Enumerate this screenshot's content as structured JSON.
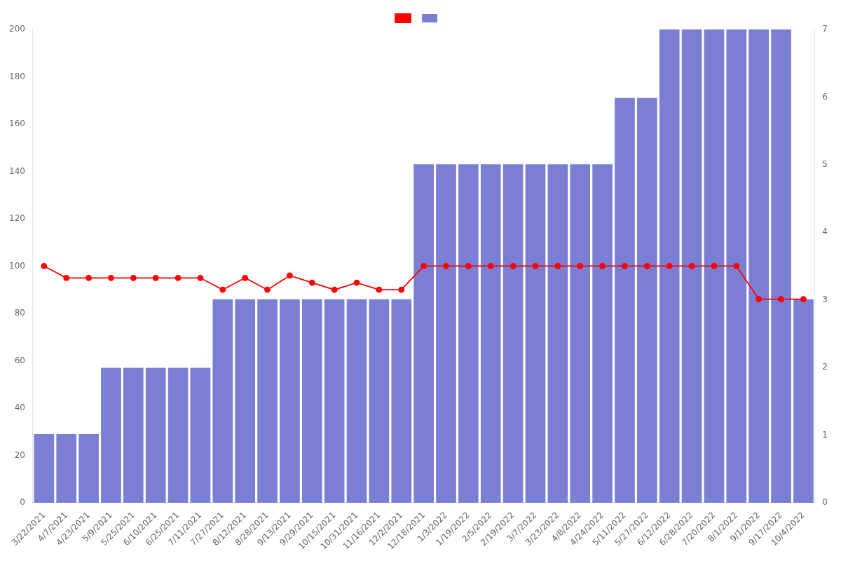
{
  "chart_data": {
    "type": "bar",
    "categories": [
      "3/22/2021",
      "4/7/2021",
      "4/23/2021",
      "5/9/2021",
      "5/25/2021",
      "6/10/2021",
      "6/25/2021",
      "7/11/2021",
      "7/27/2021",
      "8/12/2021",
      "8/28/2021",
      "9/13/2021",
      "9/29/2021",
      "10/15/2021",
      "10/31/2021",
      "11/16/2021",
      "12/2/2021",
      "12/18/2021",
      "1/3/2022",
      "1/19/2022",
      "2/5/2022",
      "2/19/2022",
      "3/7/2022",
      "3/23/2022",
      "4/8/2022",
      "4/24/2022",
      "5/11/2022",
      "5/27/2022",
      "6/12/2022",
      "6/28/2022",
      "7/20/2022",
      "8/1/2022",
      "9/1/2022",
      "9/17/2022",
      "10/4/2022"
    ],
    "series": [
      {
        "type": "bar",
        "color": "#7B7FD4",
        "values": [
          29,
          29,
          29,
          57,
          57,
          57,
          57,
          57,
          86,
          86,
          86,
          86,
          86,
          86,
          86,
          86,
          86,
          143,
          143,
          143,
          143,
          143,
          143,
          143,
          143,
          143,
          171,
          171,
          200,
          200,
          200,
          200,
          200,
          200,
          86
        ]
      },
      {
        "type": "line",
        "color": "#FF0000",
        "marker": "circle",
        "line_style": "solid",
        "values": [
          100,
          95,
          95,
          95,
          95,
          95,
          95,
          95,
          90,
          95,
          90,
          96,
          93,
          90,
          93,
          90,
          90,
          100,
          100,
          100,
          100,
          100,
          100,
          100,
          100,
          100,
          100,
          100,
          100,
          100,
          100,
          100,
          86,
          86,
          86
        ]
      }
    ],
    "ylim": [
      0,
      200
    ],
    "yticks": [
      0,
      20,
      40,
      60,
      80,
      100,
      120,
      140,
      160,
      180,
      200
    ],
    "y2lim": [
      0,
      7
    ],
    "y2ticks": [
      0,
      1,
      2,
      3,
      4,
      5,
      6,
      7
    ],
    "grid": false,
    "legend": "top"
  }
}
